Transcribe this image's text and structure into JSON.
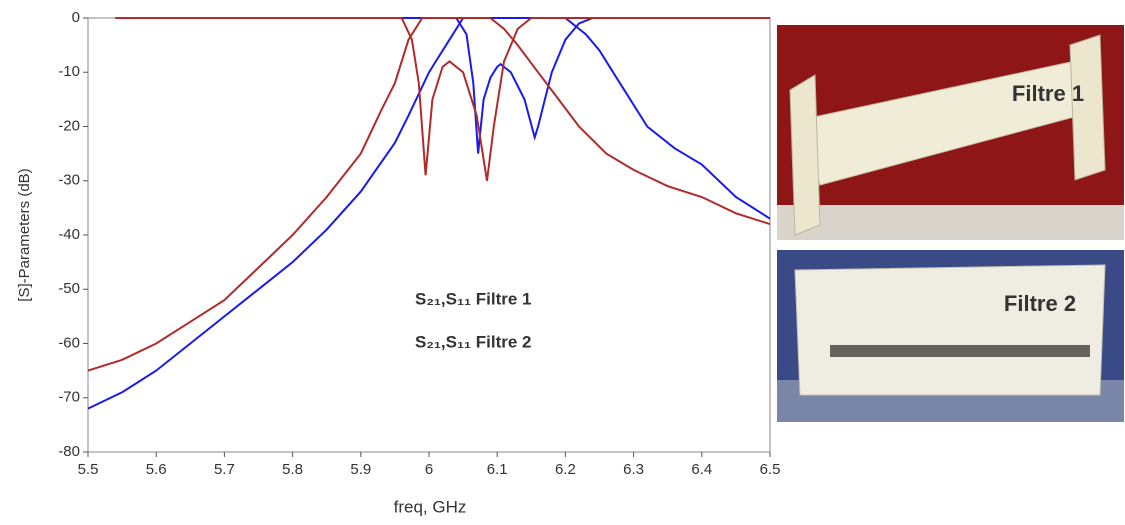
{
  "chart_data": {
    "type": "line",
    "xlabel": "freq, GHz",
    "ylabel": "[S]-Parameters (dB)",
    "xlim": [
      5.5,
      6.5
    ],
    "xticks": [
      5.5,
      5.6,
      5.7,
      5.8,
      5.9,
      6,
      6.1,
      6.2,
      6.3,
      6.4,
      6.5
    ],
    "ylim": [
      -80,
      0
    ],
    "yticks": [
      -80,
      -70,
      -60,
      -50,
      -40,
      -30,
      -20,
      -10,
      0
    ],
    "legend": [
      {
        "text": "S₂₁,S₁₁ Filtre 1",
        "color": "#1a1aee"
      },
      {
        "text": "S₂₁,S₁₁ Filtre 2",
        "color": "#b22a2a"
      }
    ],
    "series": [
      {
        "color": "#1a1aee",
        "x": [
          5.5,
          5.55,
          5.6,
          5.65,
          5.7,
          5.75,
          5.8,
          5.85,
          5.9,
          5.95,
          5.97,
          6.0,
          6.01,
          6.03,
          6.05,
          6.1,
          6.15,
          6.2,
          6.22,
          6.23,
          6.25,
          6.27,
          6.3,
          6.32,
          6.36,
          6.4,
          6.45,
          6.5
        ],
        "values": [
          -72,
          -69,
          -65,
          -60,
          -55,
          -50,
          -45,
          -39,
          -32,
          -23,
          -18,
          -10,
          -8,
          -4,
          0,
          0,
          0,
          0,
          -2,
          -3,
          -6,
          -10,
          -16,
          -20,
          -24,
          -27,
          -33,
          -37
        ]
      },
      {
        "color": "#1a1aee",
        "x": [
          5.54,
          6.0,
          6.04,
          6.055,
          6.065,
          6.072,
          6.08,
          6.09,
          6.1,
          6.105,
          6.12,
          6.14,
          6.155,
          6.16,
          6.17,
          6.18,
          6.2,
          6.22,
          6.24,
          6.5
        ],
        "values": [
          0,
          0,
          0,
          -3,
          -12,
          -25,
          -15,
          -11,
          -9,
          -8.5,
          -10,
          -15,
          -22,
          -20,
          -15,
          -10,
          -4,
          -1,
          0,
          0
        ]
      },
      {
        "color": "#b22a2a",
        "x": [
          5.5,
          5.55,
          5.6,
          5.65,
          5.7,
          5.75,
          5.8,
          5.85,
          5.9,
          5.93,
          5.95,
          5.97,
          5.99,
          6.09,
          6.11,
          6.13,
          6.16,
          6.19,
          6.22,
          6.26,
          6.3,
          6.35,
          6.4,
          6.45,
          6.5
        ],
        "values": [
          -65,
          -63,
          -60,
          -56,
          -52,
          -46,
          -40,
          -33,
          -25,
          -17,
          -12,
          -4,
          0,
          0,
          -2,
          -5,
          -10,
          -15,
          -20,
          -25,
          -28,
          -31,
          -33,
          -36,
          -38
        ]
      },
      {
        "color": "#b22a2a",
        "x": [
          5.54,
          5.96,
          5.975,
          5.985,
          5.995,
          6.005,
          6.02,
          6.03,
          6.05,
          6.07,
          6.085,
          6.095,
          6.11,
          6.13,
          6.15,
          6.5
        ],
        "values": [
          0,
          0,
          -4,
          -12,
          -29,
          -15,
          -9,
          -8,
          -10,
          -18,
          -30,
          -20,
          -8,
          -2,
          0,
          0
        ]
      }
    ]
  },
  "photos": [
    {
      "label": "Filtre 1",
      "color": "#1a1aee"
    },
    {
      "label": "Filtre 2",
      "color": "#b22a2a"
    }
  ]
}
